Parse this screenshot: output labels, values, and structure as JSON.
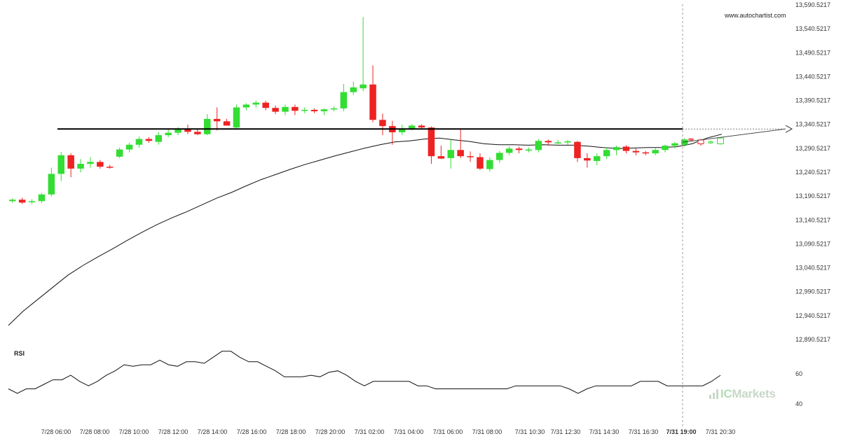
{
  "watermark": "www.autochartist.com",
  "brand": {
    "prefix": "IC",
    "name": "Markets"
  },
  "chart_data": {
    "type": "candlestick",
    "price_axis": {
      "ticks": [
        "13,590.5217",
        "13,540.5217",
        "13,490.5217",
        "13,440.5217",
        "13,390.5217",
        "13,340.5217",
        "13,290.5217",
        "13,240.5217",
        "13,190.5217",
        "13,140.5217",
        "13,090.5217",
        "13,040.5217",
        "12,990.5217",
        "12,940.5217",
        "12,890.5217"
      ],
      "ylim": [
        12870,
        13600
      ]
    },
    "time_axis": {
      "ticks": [
        "7/28 06:00",
        "7/28 08:00",
        "7/28 10:00",
        "7/28 12:00",
        "7/28 14:00",
        "7/28 16:00",
        "7/28 18:00",
        "7/28 20:00",
        "7/31 02:00",
        "7/31 04:00",
        "7/31 06:00",
        "7/31 08:00",
        "7/31 10:30",
        "7/31 12:30",
        "7/31 14:30",
        "7/31 16:30",
        "7/31 19:00",
        "7/31 20:30"
      ],
      "highlight": "7/31 19:00"
    },
    "support_resistance_level": 13331,
    "candles": [
      {
        "o": 13180,
        "h": 13186,
        "l": 13176,
        "c": 13183
      },
      {
        "o": 13183,
        "h": 13187,
        "l": 13174,
        "c": 13177
      },
      {
        "o": 13178,
        "h": 13184,
        "l": 13174,
        "c": 13180
      },
      {
        "o": 13180,
        "h": 13197,
        "l": 13176,
        "c": 13194
      },
      {
        "o": 13194,
        "h": 13250,
        "l": 13190,
        "c": 13237
      },
      {
        "o": 13237,
        "h": 13283,
        "l": 13222,
        "c": 13276
      },
      {
        "o": 13276,
        "h": 13280,
        "l": 13230,
        "c": 13248
      },
      {
        "o": 13248,
        "h": 13268,
        "l": 13240,
        "c": 13258
      },
      {
        "o": 13258,
        "h": 13272,
        "l": 13250,
        "c": 13262
      },
      {
        "o": 13262,
        "h": 13266,
        "l": 13248,
        "c": 13252
      },
      {
        "o": 13252,
        "h": 13256,
        "l": 13248,
        "c": 13251
      },
      {
        "o": 13273,
        "h": 13292,
        "l": 13270,
        "c": 13288
      },
      {
        "o": 13288,
        "h": 13302,
        "l": 13282,
        "c": 13298
      },
      {
        "o": 13298,
        "h": 13315,
        "l": 13292,
        "c": 13310
      },
      {
        "o": 13310,
        "h": 13314,
        "l": 13302,
        "c": 13306
      },
      {
        "o": 13304,
        "h": 13325,
        "l": 13298,
        "c": 13318
      },
      {
        "o": 13318,
        "h": 13330,
        "l": 13314,
        "c": 13323
      },
      {
        "o": 13323,
        "h": 13335,
        "l": 13318,
        "c": 13330
      },
      {
        "o": 13330,
        "h": 13340,
        "l": 13320,
        "c": 13325
      },
      {
        "o": 13325,
        "h": 13332,
        "l": 13318,
        "c": 13320
      },
      {
        "o": 13320,
        "h": 13362,
        "l": 13318,
        "c": 13352
      },
      {
        "o": 13352,
        "h": 13376,
        "l": 13328,
        "c": 13347
      },
      {
        "o": 13347,
        "h": 13352,
        "l": 13338,
        "c": 13338
      },
      {
        "o": 13334,
        "h": 13382,
        "l": 13330,
        "c": 13376
      },
      {
        "o": 13376,
        "h": 13385,
        "l": 13370,
        "c": 13382
      },
      {
        "o": 13382,
        "h": 13390,
        "l": 13376,
        "c": 13386
      },
      {
        "o": 13386,
        "h": 13390,
        "l": 13370,
        "c": 13375
      },
      {
        "o": 13375,
        "h": 13380,
        "l": 13362,
        "c": 13367
      },
      {
        "o": 13367,
        "h": 13382,
        "l": 13360,
        "c": 13377
      },
      {
        "o": 13377,
        "h": 13382,
        "l": 13360,
        "c": 13369
      },
      {
        "o": 13369,
        "h": 13376,
        "l": 13364,
        "c": 13371
      },
      {
        "o": 13371,
        "h": 13374,
        "l": 13364,
        "c": 13368
      },
      {
        "o": 13368,
        "h": 13374,
        "l": 13360,
        "c": 13372
      },
      {
        "o": 13372,
        "h": 13378,
        "l": 13368,
        "c": 13374
      },
      {
        "o": 13374,
        "h": 13425,
        "l": 13368,
        "c": 13408
      },
      {
        "o": 13408,
        "h": 13430,
        "l": 13402,
        "c": 13418
      },
      {
        "o": 13416,
        "h": 13565,
        "l": 13410,
        "c": 13424
      },
      {
        "o": 13424,
        "h": 13464,
        "l": 13345,
        "c": 13350
      },
      {
        "o": 13350,
        "h": 13363,
        "l": 13318,
        "c": 13337
      },
      {
        "o": 13337,
        "h": 13348,
        "l": 13298,
        "c": 13324
      },
      {
        "o": 13324,
        "h": 13340,
        "l": 13318,
        "c": 13330
      },
      {
        "o": 13331,
        "h": 13341,
        "l": 13328,
        "c": 13338
      },
      {
        "o": 13338,
        "h": 13341,
        "l": 13330,
        "c": 13334
      },
      {
        "o": 13334,
        "h": 13336,
        "l": 13258,
        "c": 13274
      },
      {
        "o": 13274,
        "h": 13296,
        "l": 13268,
        "c": 13269
      },
      {
        "o": 13270,
        "h": 13308,
        "l": 13248,
        "c": 13287
      },
      {
        "o": 13287,
        "h": 13332,
        "l": 13270,
        "c": 13274
      },
      {
        "o": 13274,
        "h": 13284,
        "l": 13262,
        "c": 13272
      },
      {
        "o": 13272,
        "h": 13280,
        "l": 13245,
        "c": 13248
      },
      {
        "o": 13247,
        "h": 13272,
        "l": 13242,
        "c": 13266
      },
      {
        "o": 13266,
        "h": 13285,
        "l": 13260,
        "c": 13281
      },
      {
        "o": 13281,
        "h": 13295,
        "l": 13276,
        "c": 13290
      },
      {
        "o": 13290,
        "h": 13294,
        "l": 13280,
        "c": 13287
      },
      {
        "o": 13287,
        "h": 13292,
        "l": 13282,
        "c": 13288
      },
      {
        "o": 13287,
        "h": 13310,
        "l": 13282,
        "c": 13306
      },
      {
        "o": 13306,
        "h": 13309,
        "l": 13296,
        "c": 13303
      },
      {
        "o": 13303,
        "h": 13308,
        "l": 13299,
        "c": 13303
      },
      {
        "o": 13303,
        "h": 13308,
        "l": 13298,
        "c": 13305
      },
      {
        "o": 13304,
        "h": 13306,
        "l": 13262,
        "c": 13270
      },
      {
        "o": 13270,
        "h": 13280,
        "l": 13250,
        "c": 13265
      },
      {
        "o": 13264,
        "h": 13280,
        "l": 13255,
        "c": 13274
      },
      {
        "o": 13274,
        "h": 13293,
        "l": 13268,
        "c": 13287
      },
      {
        "o": 13287,
        "h": 13296,
        "l": 13276,
        "c": 13293
      },
      {
        "o": 13294,
        "h": 13297,
        "l": 13280,
        "c": 13285
      },
      {
        "o": 13285,
        "h": 13290,
        "l": 13276,
        "c": 13282
      },
      {
        "o": 13282,
        "h": 13285,
        "l": 13276,
        "c": 13280
      },
      {
        "o": 13280,
        "h": 13292,
        "l": 13276,
        "c": 13287
      },
      {
        "o": 13287,
        "h": 13298,
        "l": 13282,
        "c": 13296
      },
      {
        "o": 13296,
        "h": 13304,
        "l": 13290,
        "c": 13301
      },
      {
        "o": 13298,
        "h": 13312,
        "l": 13294,
        "c": 13309
      }
    ],
    "forecast_candles": [
      {
        "o": 13310,
        "h": 13312,
        "l": 13306,
        "c": 13309
      },
      {
        "o": 13308,
        "h": 13310,
        "l": 13296,
        "c": 13300
      },
      {
        "o": 13303,
        "h": 13307,
        "l": 13300,
        "c": 13304
      },
      {
        "o": 13300,
        "h": 13314,
        "l": 13298,
        "c": 13312
      }
    ],
    "moving_average": [
      12920,
      12950,
      12975,
      13000,
      13025,
      13045,
      13063,
      13080,
      13098,
      13115,
      13131,
      13145,
      13158,
      13172,
      13186,
      13198,
      13212,
      13225,
      13236,
      13247,
      13257,
      13266,
      13275,
      13283,
      13291,
      13298,
      13304,
      13306,
      13310,
      13312,
      13308,
      13305,
      13300,
      13298,
      13298,
      13297,
      13298,
      13297,
      13297,
      13295,
      13292,
      13290,
      13291,
      13292,
      13292,
      13294,
      13300,
      13312,
      13320
    ],
    "rsi": {
      "label": "RSI",
      "ticks": [
        "60",
        "40"
      ],
      "ylim": [
        25,
        80
      ],
      "values": [
        50,
        47,
        50,
        50,
        53,
        56,
        56,
        59,
        55,
        52,
        55,
        59,
        62,
        66,
        65,
        66,
        66,
        69,
        66,
        65,
        68,
        68,
        67,
        71,
        75,
        75,
        71,
        68,
        68,
        65,
        62,
        58,
        58,
        58,
        59,
        58,
        61,
        62,
        59,
        55,
        52,
        55,
        55,
        55,
        55,
        55,
        52,
        52,
        50,
        50,
        50,
        50,
        50,
        50,
        50,
        50,
        50,
        52,
        52,
        52,
        52,
        52,
        52,
        50,
        47,
        50,
        52,
        52,
        52,
        52,
        52,
        55,
        55,
        55,
        52,
        52,
        52,
        52,
        52,
        55,
        59
      ]
    }
  }
}
